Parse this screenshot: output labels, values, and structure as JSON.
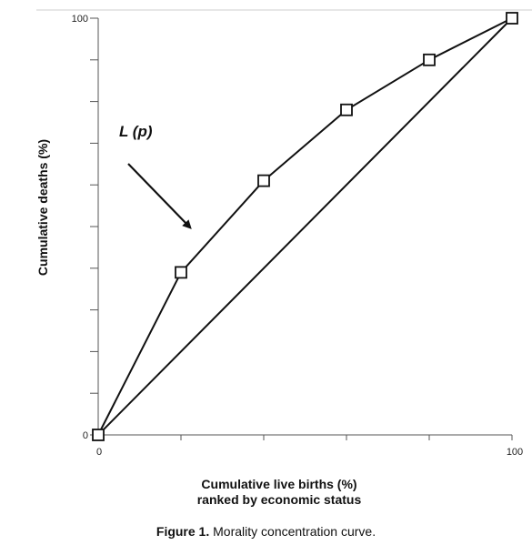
{
  "chart_data": {
    "type": "line",
    "title": "",
    "xlabel": "Cumulative live births (%)",
    "xlabel_line2": "ranked by economic status",
    "ylabel": "Cumulative deaths (%)",
    "xlim": [
      0,
      100
    ],
    "ylim": [
      0,
      100
    ],
    "x_tick_labels": [
      "0",
      "100"
    ],
    "y_tick_labels": [
      "0",
      "100"
    ],
    "grid": false,
    "series": [
      {
        "name": "",
        "marker": "square",
        "x": [
          0,
          20,
          40,
          60,
          80,
          100
        ],
        "y": [
          0,
          39,
          61,
          78,
          90,
          100
        ]
      },
      {
        "name": "",
        "marker": "none",
        "x": [
          0,
          100
        ],
        "y": [
          0,
          100
        ]
      }
    ],
    "annotation": {
      "text": "L (p)",
      "arrow_to": {
        "x": 22,
        "y": 49
      }
    },
    "colors": {
      "line": "#111111",
      "axis": "#555555"
    }
  },
  "caption": {
    "figure_label": "Figure 1.",
    "text": " Morality concentration curve."
  }
}
